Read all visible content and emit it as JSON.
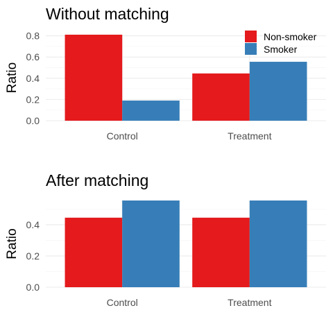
{
  "colors": {
    "non_smoker": "#E41A1C",
    "smoker": "#377EB8"
  },
  "legend": {
    "position": "top-right",
    "items": [
      "Non-smoker",
      "Smoker"
    ]
  },
  "chart_data": [
    {
      "type": "bar",
      "title": "Without matching",
      "xlabel": "",
      "ylabel": "Ratio",
      "categories": [
        "Control",
        "Treatment"
      ],
      "series": [
        {
          "name": "Non-smoker",
          "values": [
            0.81,
            0.445
          ]
        },
        {
          "name": "Smoker",
          "values": [
            0.19,
            0.555
          ]
        }
      ],
      "ylim": [
        0,
        0.81
      ],
      "yticks": [
        0.0,
        0.2,
        0.4,
        0.6,
        0.8
      ],
      "ytick_labels": [
        "0.0",
        "0.2",
        "0.4",
        "0.6",
        "0.8"
      ],
      "grid": true,
      "legend": true
    },
    {
      "type": "bar",
      "title": "After matching",
      "xlabel": "",
      "ylabel": "Ratio",
      "categories": [
        "Control",
        "Treatment"
      ],
      "series": [
        {
          "name": "Non-smoker",
          "values": [
            0.445,
            0.445
          ]
        },
        {
          "name": "Smoker",
          "values": [
            0.555,
            0.555
          ]
        }
      ],
      "ylim": [
        0,
        0.555
      ],
      "yticks": [
        0.0,
        0.2,
        0.4
      ],
      "ytick_labels": [
        "0.0",
        "0.2",
        "0.4"
      ],
      "grid": true,
      "legend": false
    }
  ]
}
